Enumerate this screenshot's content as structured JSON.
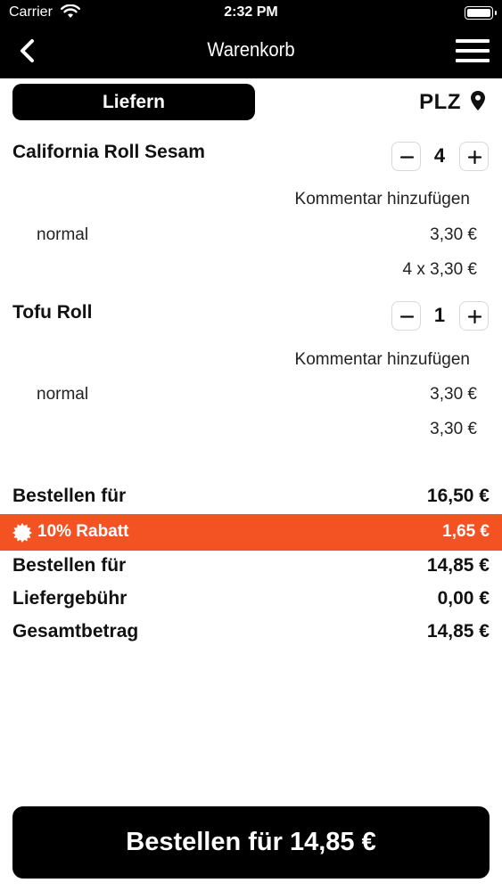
{
  "status_bar": {
    "carrier": "Carrier",
    "time": "2:32 PM"
  },
  "nav": {
    "title": "Warenkorb"
  },
  "delivery": {
    "mode_label": "Liefern",
    "plz_label": "PLZ"
  },
  "items": [
    {
      "name": "California Roll Sesam",
      "quantity": "4",
      "comment_label": "Kommentar hinzufügen",
      "variant": "normal",
      "unit_price": "3,30 €",
      "line_total": "4 x 3,30 €"
    },
    {
      "name": "Tofu Roll",
      "quantity": "1",
      "comment_label": "Kommentar hinzufügen",
      "variant": "normal",
      "unit_price": "3,30 €",
      "line_total": "3,30 €"
    }
  ],
  "totals": {
    "subtotal_label": "Bestellen für",
    "subtotal_value": "16,50 €",
    "discount_label": "10% Rabatt",
    "discount_value": "1,65 €",
    "after_discount_label": "Bestellen für",
    "after_discount_value": "14,85 €",
    "delivery_fee_label": "Liefergebühr",
    "delivery_fee_value": "0,00 €",
    "grand_total_label": "Gesamtbetrag",
    "grand_total_value": "14,85 €"
  },
  "order_button": {
    "label": "Bestellen für 14,85 €"
  },
  "colors": {
    "accent": "#f35322",
    "bar": "#000000",
    "border": "#d8d8d8"
  },
  "icons": [
    "wifi-icon",
    "battery-icon",
    "back-chevron-icon",
    "hamburger-menu-icon",
    "location-pin-icon",
    "minus-icon",
    "plus-icon",
    "discount-badge-icon"
  ]
}
